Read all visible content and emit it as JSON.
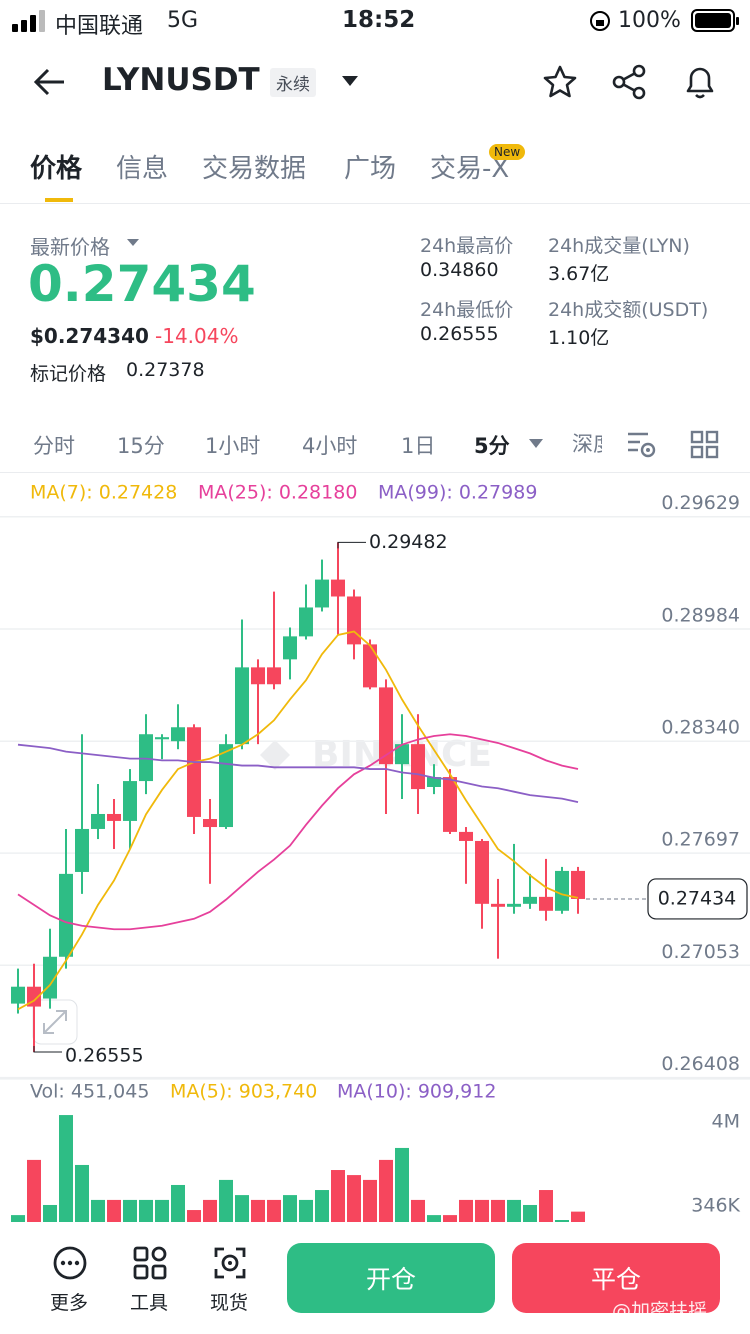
{
  "status_bar": {
    "carrier": "中国联通",
    "network": "5G",
    "time": "18:52",
    "battery": "100%"
  },
  "header": {
    "symbol": "LYNUSDT",
    "contract": "永续"
  },
  "tabs": [
    "价格",
    "信息",
    "交易数据",
    "广场",
    "交易-X"
  ],
  "tab_badge": "New",
  "price_info": {
    "last_label": "最新价格",
    "last": "0.27434",
    "usd": "$0.274340",
    "change": "-14.04%",
    "mark_label": "标记价格",
    "mark": "0.27378"
  },
  "stats": [
    {
      "label": "24h最高价",
      "value": "0.34860"
    },
    {
      "label": "24h成交量(LYN)",
      "value": "3.67亿"
    },
    {
      "label": "24h最低价",
      "value": "0.26555"
    },
    {
      "label": "24h成交额(USDT)",
      "value": "1.10亿"
    }
  ],
  "intervals": [
    "分时",
    "15分",
    "1小时",
    "4小时",
    "1日",
    "5分",
    "深度"
  ],
  "watermark": "BINANCE",
  "bottom_bar": {
    "more": "更多",
    "tools": "工具",
    "spot": "现货",
    "open": "开仓",
    "close": "平仓"
  },
  "credit": "@加密扶摇",
  "chart_data": [
    {
      "type": "candlestick",
      "colors": {
        "up": "#2ebd85",
        "down": "#f6465d"
      },
      "ohlc": [
        [
          0.26833,
          0.27034,
          0.26776,
          0.2693
        ],
        [
          0.2693,
          0.27062,
          0.26555,
          0.26816
        ],
        [
          0.26862,
          0.27263,
          0.26804,
          0.27102
        ],
        [
          0.27102,
          0.27836,
          0.27034,
          0.27578
        ],
        [
          0.27589,
          0.2838,
          0.27463,
          0.27836
        ],
        [
          0.27836,
          0.28094,
          0.27778,
          0.27922
        ],
        [
          0.27922,
          0.28008,
          0.27721,
          0.27882
        ],
        [
          0.27882,
          0.2818,
          0.27721,
          0.28111
        ],
        [
          0.28111,
          0.28495,
          0.28036,
          0.2838
        ],
        [
          0.28351,
          0.2838,
          0.28237,
          0.28363
        ],
        [
          0.2834,
          0.28552,
          0.28294,
          0.2842
        ],
        [
          0.2842,
          0.28437,
          0.27807,
          0.27905
        ],
        [
          0.27893,
          0.28008,
          0.27521,
          0.27847
        ],
        [
          0.27847,
          0.2838,
          0.27836,
          0.28323
        ],
        [
          0.28323,
          0.29039,
          0.28294,
          0.28764
        ],
        [
          0.28764,
          0.2881,
          0.28323,
          0.28667
        ],
        [
          0.28764,
          0.29199,
          0.28638,
          0.28667
        ],
        [
          0.2881,
          0.28993,
          0.28695,
          0.28942
        ],
        [
          0.28942,
          0.2924,
          0.28924,
          0.29108
        ],
        [
          0.29108,
          0.29383,
          0.29085,
          0.29268
        ],
        [
          0.29268,
          0.29482,
          0.28953,
          0.29171
        ],
        [
          0.29171,
          0.29211,
          0.2881,
          0.28896
        ],
        [
          0.28896,
          0.28924,
          0.28638,
          0.28649
        ],
        [
          0.28649,
          0.28695,
          0.27922,
          0.28208
        ],
        [
          0.28208,
          0.28495,
          0.28008,
          0.28323
        ],
        [
          0.28323,
          0.28495,
          0.27922,
          0.28065
        ],
        [
          0.28077,
          0.28208,
          0.28036,
          0.28134
        ],
        [
          0.28134,
          0.2818,
          0.27807,
          0.27819
        ],
        [
          0.27819,
          0.27847,
          0.27521,
          0.27767
        ],
        [
          0.27767,
          0.27778,
          0.27263,
          0.27406
        ],
        [
          0.27406,
          0.27549,
          0.27091,
          0.27389
        ],
        [
          0.27389,
          0.2775,
          0.27349,
          0.27406
        ],
        [
          0.27406,
          0.27578,
          0.27377,
          0.27446
        ],
        [
          0.27446,
          0.27664,
          0.27309,
          0.27366
        ],
        [
          0.27366,
          0.27618,
          0.27349,
          0.27595
        ],
        [
          0.27595,
          0.27618,
          0.27349,
          0.27434
        ]
      ],
      "series": [
        {
          "name": "MA(7): 0.27428",
          "color": "#f0b90b",
          "values": [
            0.268,
            0.2685,
            0.2694,
            0.2708,
            0.2723,
            0.274,
            0.2754,
            0.2772,
            0.2792,
            0.2806,
            0.2818,
            0.2822,
            0.2824,
            0.2828,
            0.2832,
            0.2838,
            0.2846,
            0.2858,
            0.2869,
            0.2884,
            0.2895,
            0.2897,
            0.2889,
            0.2875,
            0.2858,
            0.2843,
            0.2829,
            0.2815,
            0.28,
            0.2786,
            0.2772,
            0.2765,
            0.2757,
            0.275,
            0.2746,
            0.2744
          ]
        },
        {
          "name": "MA(25): 0.28180",
          "color": "#e6409b",
          "values": [
            0.2746,
            0.274,
            0.2734,
            0.273,
            0.2728,
            0.2727,
            0.2726,
            0.2726,
            0.2727,
            0.2728,
            0.273,
            0.2732,
            0.2736,
            0.2743,
            0.2751,
            0.2759,
            0.2766,
            0.2774,
            0.2786,
            0.2797,
            0.2807,
            0.2815,
            0.282,
            0.2826,
            0.2832,
            0.2835,
            0.2837,
            0.2838,
            0.2837,
            0.2835,
            0.2833,
            0.283,
            0.2827,
            0.2823,
            0.282,
            0.2818
          ]
        },
        {
          "name": "MA(99): 0.27989",
          "color": "#8b5fc6",
          "values": [
            0.2832,
            0.2831,
            0.283,
            0.2828,
            0.2827,
            0.2826,
            0.2825,
            0.2824,
            0.2824,
            0.2823,
            0.2823,
            0.2822,
            0.2822,
            0.2821,
            0.282,
            0.282,
            0.2819,
            0.2819,
            0.2819,
            0.2819,
            0.2819,
            0.2819,
            0.2818,
            0.2818,
            0.2816,
            0.2815,
            0.2813,
            0.2812,
            0.281,
            0.2808,
            0.2807,
            0.2805,
            0.2803,
            0.2802,
            0.2801,
            0.2799
          ]
        }
      ],
      "ylim": [
        0.264,
        0.2984
      ],
      "yticks": [
        0.29629,
        0.28984,
        {
          "value": 0.2834,
          "label": "0.28340"
        },
        0.27697,
        0.27053,
        0.26408
      ],
      "grid": true,
      "high_label": 0.29482,
      "low_label": 0.26555,
      "current_price": 0.27434
    },
    {
      "type": "bar",
      "legend": [
        "Vol: 451,045",
        "MA(5): 903,740",
        "MA(10): 909,912"
      ],
      "legend_colors": [
        "#707a8a",
        "#f0b90b",
        "#8b5fc6"
      ],
      "colors": {
        "up": "#2ebd85",
        "down": "#f6465d"
      },
      "values": [
        300000,
        2700000,
        740000,
        4650000,
        2480000,
        960000,
        960000,
        960000,
        960000,
        960000,
        1610000,
        520000,
        960000,
        1830000,
        1170000,
        960000,
        960000,
        1170000,
        960000,
        1390000,
        2260000,
        2040000,
        1830000,
        2700000,
        3220000,
        960000,
        300000,
        300000,
        960000,
        960000,
        960000,
        960000,
        740000,
        1390000,
        87000,
        451045
      ],
      "ylim": [
        0,
        4870000
      ],
      "yticks": [
        {
          "value": 4000000,
          "label": "4M"
        },
        {
          "value": 346000,
          "label": "346K"
        }
      ]
    }
  ]
}
